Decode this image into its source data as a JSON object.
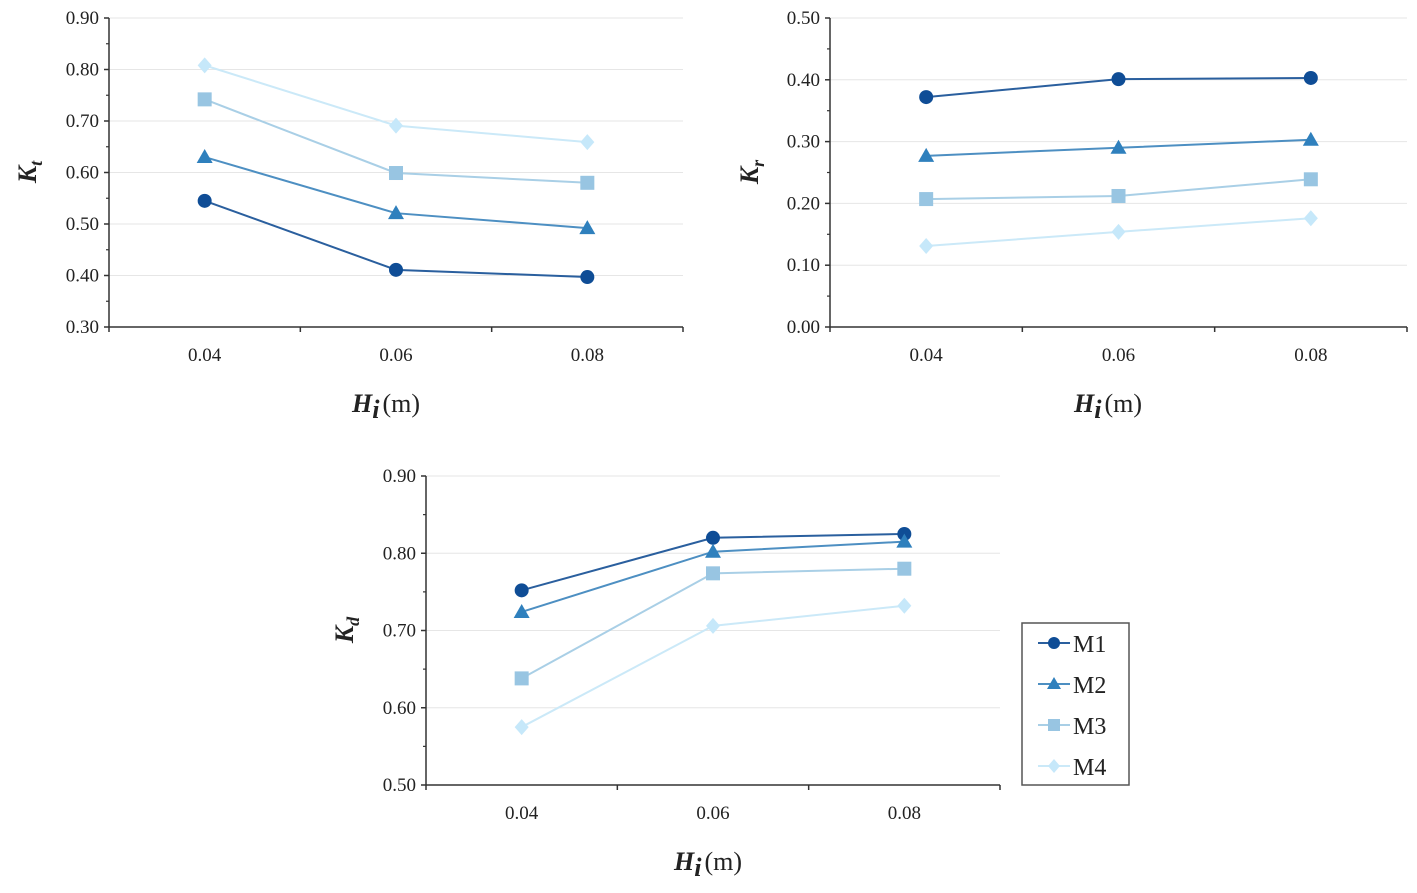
{
  "series_styles": [
    {
      "name": "M1",
      "marker": "circle",
      "color": "#0f4d96",
      "line": "#2a5f9e"
    },
    {
      "name": "M2",
      "marker": "triangle",
      "color": "#2f80bd",
      "line": "#4d8fc2"
    },
    {
      "name": "M3",
      "marker": "square",
      "color": "#98c5e2",
      "line": "#a9cfe6"
    },
    {
      "name": "M4",
      "marker": "diamond",
      "color": "#c6e8fa",
      "line": "#cbe9f8"
    }
  ],
  "legend": {
    "entries": [
      "M1",
      "M2",
      "M3",
      "M4"
    ],
    "placement": "right of bottom chart"
  },
  "chart_data": [
    {
      "type": "line",
      "ylabel": {
        "main": "K",
        "sub": "t"
      },
      "xlabel": {
        "main": "H",
        "sub": "i",
        "unit": "(m)"
      },
      "categories": [
        "0.04",
        "0.06",
        "0.08"
      ],
      "ylim": [
        0.3,
        0.9
      ],
      "yticks": [
        "0.30",
        "0.40",
        "0.50",
        "0.60",
        "0.70",
        "0.80",
        "0.90"
      ],
      "grid": true,
      "series": [
        {
          "name": "M1",
          "values": [
            0.545,
            0.411,
            0.397
          ]
        },
        {
          "name": "M2",
          "values": [
            0.63,
            0.521,
            0.492
          ]
        },
        {
          "name": "M3",
          "values": [
            0.742,
            0.599,
            0.58
          ]
        },
        {
          "name": "M4",
          "values": [
            0.808,
            0.691,
            0.659
          ]
        }
      ]
    },
    {
      "type": "line",
      "ylabel": {
        "main": "K",
        "sub": "r"
      },
      "xlabel": {
        "main": "H",
        "sub": "i",
        "unit": "(m)"
      },
      "categories": [
        "0.04",
        "0.06",
        "0.08"
      ],
      "ylim": [
        0.0,
        0.5
      ],
      "yticks": [
        "0.00",
        "0.10",
        "0.20",
        "0.30",
        "0.40",
        "0.50"
      ],
      "grid": true,
      "series": [
        {
          "name": "M1",
          "values": [
            0.372,
            0.401,
            0.403
          ]
        },
        {
          "name": "M2",
          "values": [
            0.277,
            0.29,
            0.303
          ]
        },
        {
          "name": "M3",
          "values": [
            0.207,
            0.212,
            0.239
          ]
        },
        {
          "name": "M4",
          "values": [
            0.131,
            0.154,
            0.176
          ]
        }
      ]
    },
    {
      "type": "line",
      "ylabel": {
        "main": "K",
        "sub": "d"
      },
      "xlabel": {
        "main": "H",
        "sub": "i",
        "unit": "(m)"
      },
      "categories": [
        "0.04",
        "0.06",
        "0.08"
      ],
      "ylim": [
        0.5,
        0.9
      ],
      "yticks": [
        "0.50",
        "0.60",
        "0.70",
        "0.80",
        "0.90"
      ],
      "grid": true,
      "series": [
        {
          "name": "M1",
          "values": [
            0.752,
            0.82,
            0.825
          ]
        },
        {
          "name": "M2",
          "values": [
            0.724,
            0.802,
            0.815
          ]
        },
        {
          "name": "M3",
          "values": [
            0.638,
            0.774,
            0.78
          ]
        },
        {
          "name": "M4",
          "values": [
            0.575,
            0.706,
            0.732
          ]
        }
      ]
    }
  ]
}
